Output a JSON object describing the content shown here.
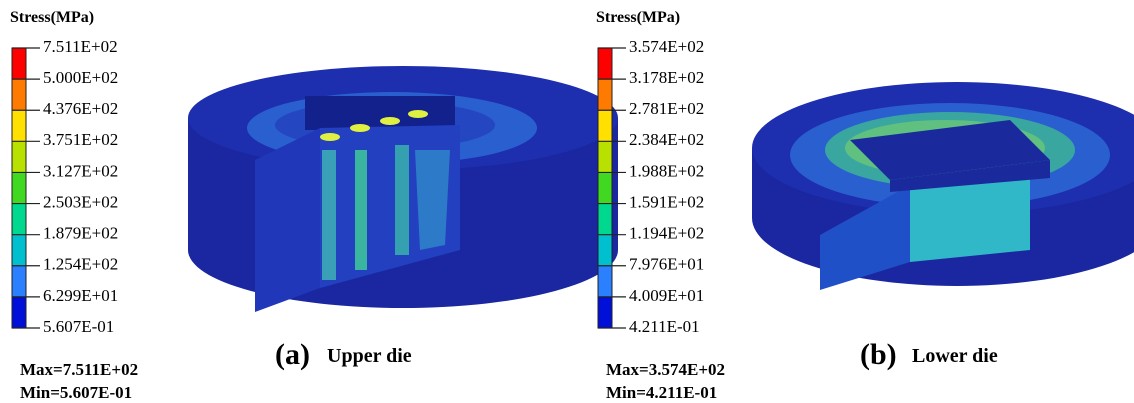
{
  "panels": [
    {
      "legend_title": "Stress(MPa)",
      "levels": [
        "7.511E+02",
        "5.000E+02",
        "4.376E+02",
        "3.751E+02",
        "3.127E+02",
        "2.503E+02",
        "1.879E+02",
        "1.254E+02",
        "6.299E+01",
        "5.607E-01"
      ],
      "max": "Max=7.511E+02",
      "min": "Min=5.607E-01",
      "label": "(a)",
      "caption": "Upper die"
    },
    {
      "legend_title": "Stress(MPa)",
      "levels": [
        "3.574E+02",
        "3.178E+02",
        "2.781E+02",
        "2.384E+02",
        "1.988E+02",
        "1.591E+02",
        "1.194E+02",
        "7.976E+01",
        "4.009E+01",
        "4.211E-01"
      ],
      "max": "Max=3.574E+02",
      "min": "Min=4.211E-01",
      "label": "(b)",
      "caption": "Lower die"
    }
  ]
}
